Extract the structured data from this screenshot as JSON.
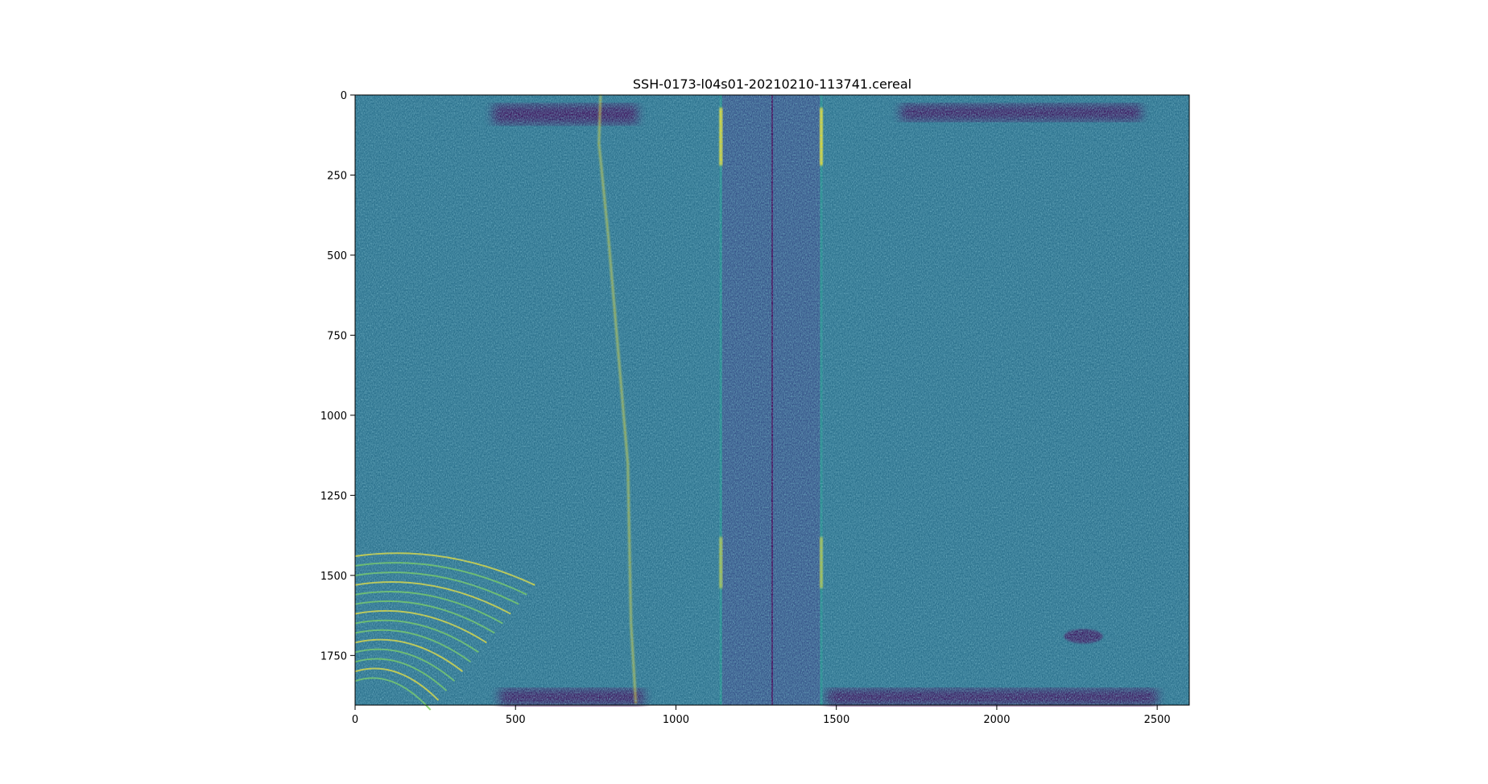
{
  "chart_data": {
    "type": "heatmap",
    "title": "SSH-0173-l04s01-20210210-113741.cereal",
    "xlabel": "",
    "ylabel": "",
    "xlim": [
      0,
      2600
    ],
    "ylim": [
      1905,
      0
    ],
    "x_ticks": [
      0,
      500,
      1000,
      1500,
      2000,
      2500
    ],
    "x_tick_labels": [
      "0",
      "500",
      "1000",
      "1500",
      "2000",
      "2500"
    ],
    "y_ticks": [
      0,
      250,
      500,
      750,
      1000,
      1250,
      1500,
      1750
    ],
    "y_tick_labels": [
      "0",
      "250",
      "500",
      "750",
      "1000",
      "1250",
      "1500",
      "1750"
    ],
    "colormap": "viridis",
    "grid": false,
    "legend": "none",
    "colors": {
      "background": "#2c728e",
      "dark": "#440154",
      "bright": "#fde725",
      "mid": "#21918c",
      "band": "#3b528b"
    },
    "features": [
      {
        "kind": "dark-band",
        "x0": 430,
        "x1": 880,
        "y0": 30,
        "y1": 90
      },
      {
        "kind": "dark-band",
        "x0": 1700,
        "x1": 2450,
        "y0": 30,
        "y1": 80
      },
      {
        "kind": "dark-band",
        "x0": 450,
        "x1": 900,
        "y0": 1855,
        "y1": 1905
      },
      {
        "kind": "dark-band",
        "x0": 1470,
        "x1": 2500,
        "y0": 1855,
        "y1": 1905
      },
      {
        "kind": "vertical-strip",
        "x0": 1140,
        "x1": 1455,
        "y0": 0,
        "y1": 1905
      },
      {
        "kind": "vertical-line",
        "x": 1300,
        "y0": 0,
        "y1": 1905
      },
      {
        "kind": "bright-edge",
        "x": 1140,
        "y0": 0,
        "y1": 1905
      },
      {
        "kind": "bright-edge",
        "x": 1453,
        "y0": 0,
        "y1": 1905
      },
      {
        "kind": "bright-curve",
        "points": [
          [
            765,
            0
          ],
          [
            760,
            150
          ],
          [
            790,
            450
          ],
          [
            820,
            800
          ],
          [
            850,
            1150
          ],
          [
            855,
            1400
          ],
          [
            860,
            1650
          ],
          [
            875,
            1900
          ]
        ]
      },
      {
        "kind": "bright-patch",
        "x0": 0,
        "x1": 560,
        "y0": 1440,
        "y1": 1860
      },
      {
        "kind": "dark-blob",
        "x": 2270,
        "y": 1690,
        "rx": 60,
        "ry": 22
      }
    ]
  }
}
